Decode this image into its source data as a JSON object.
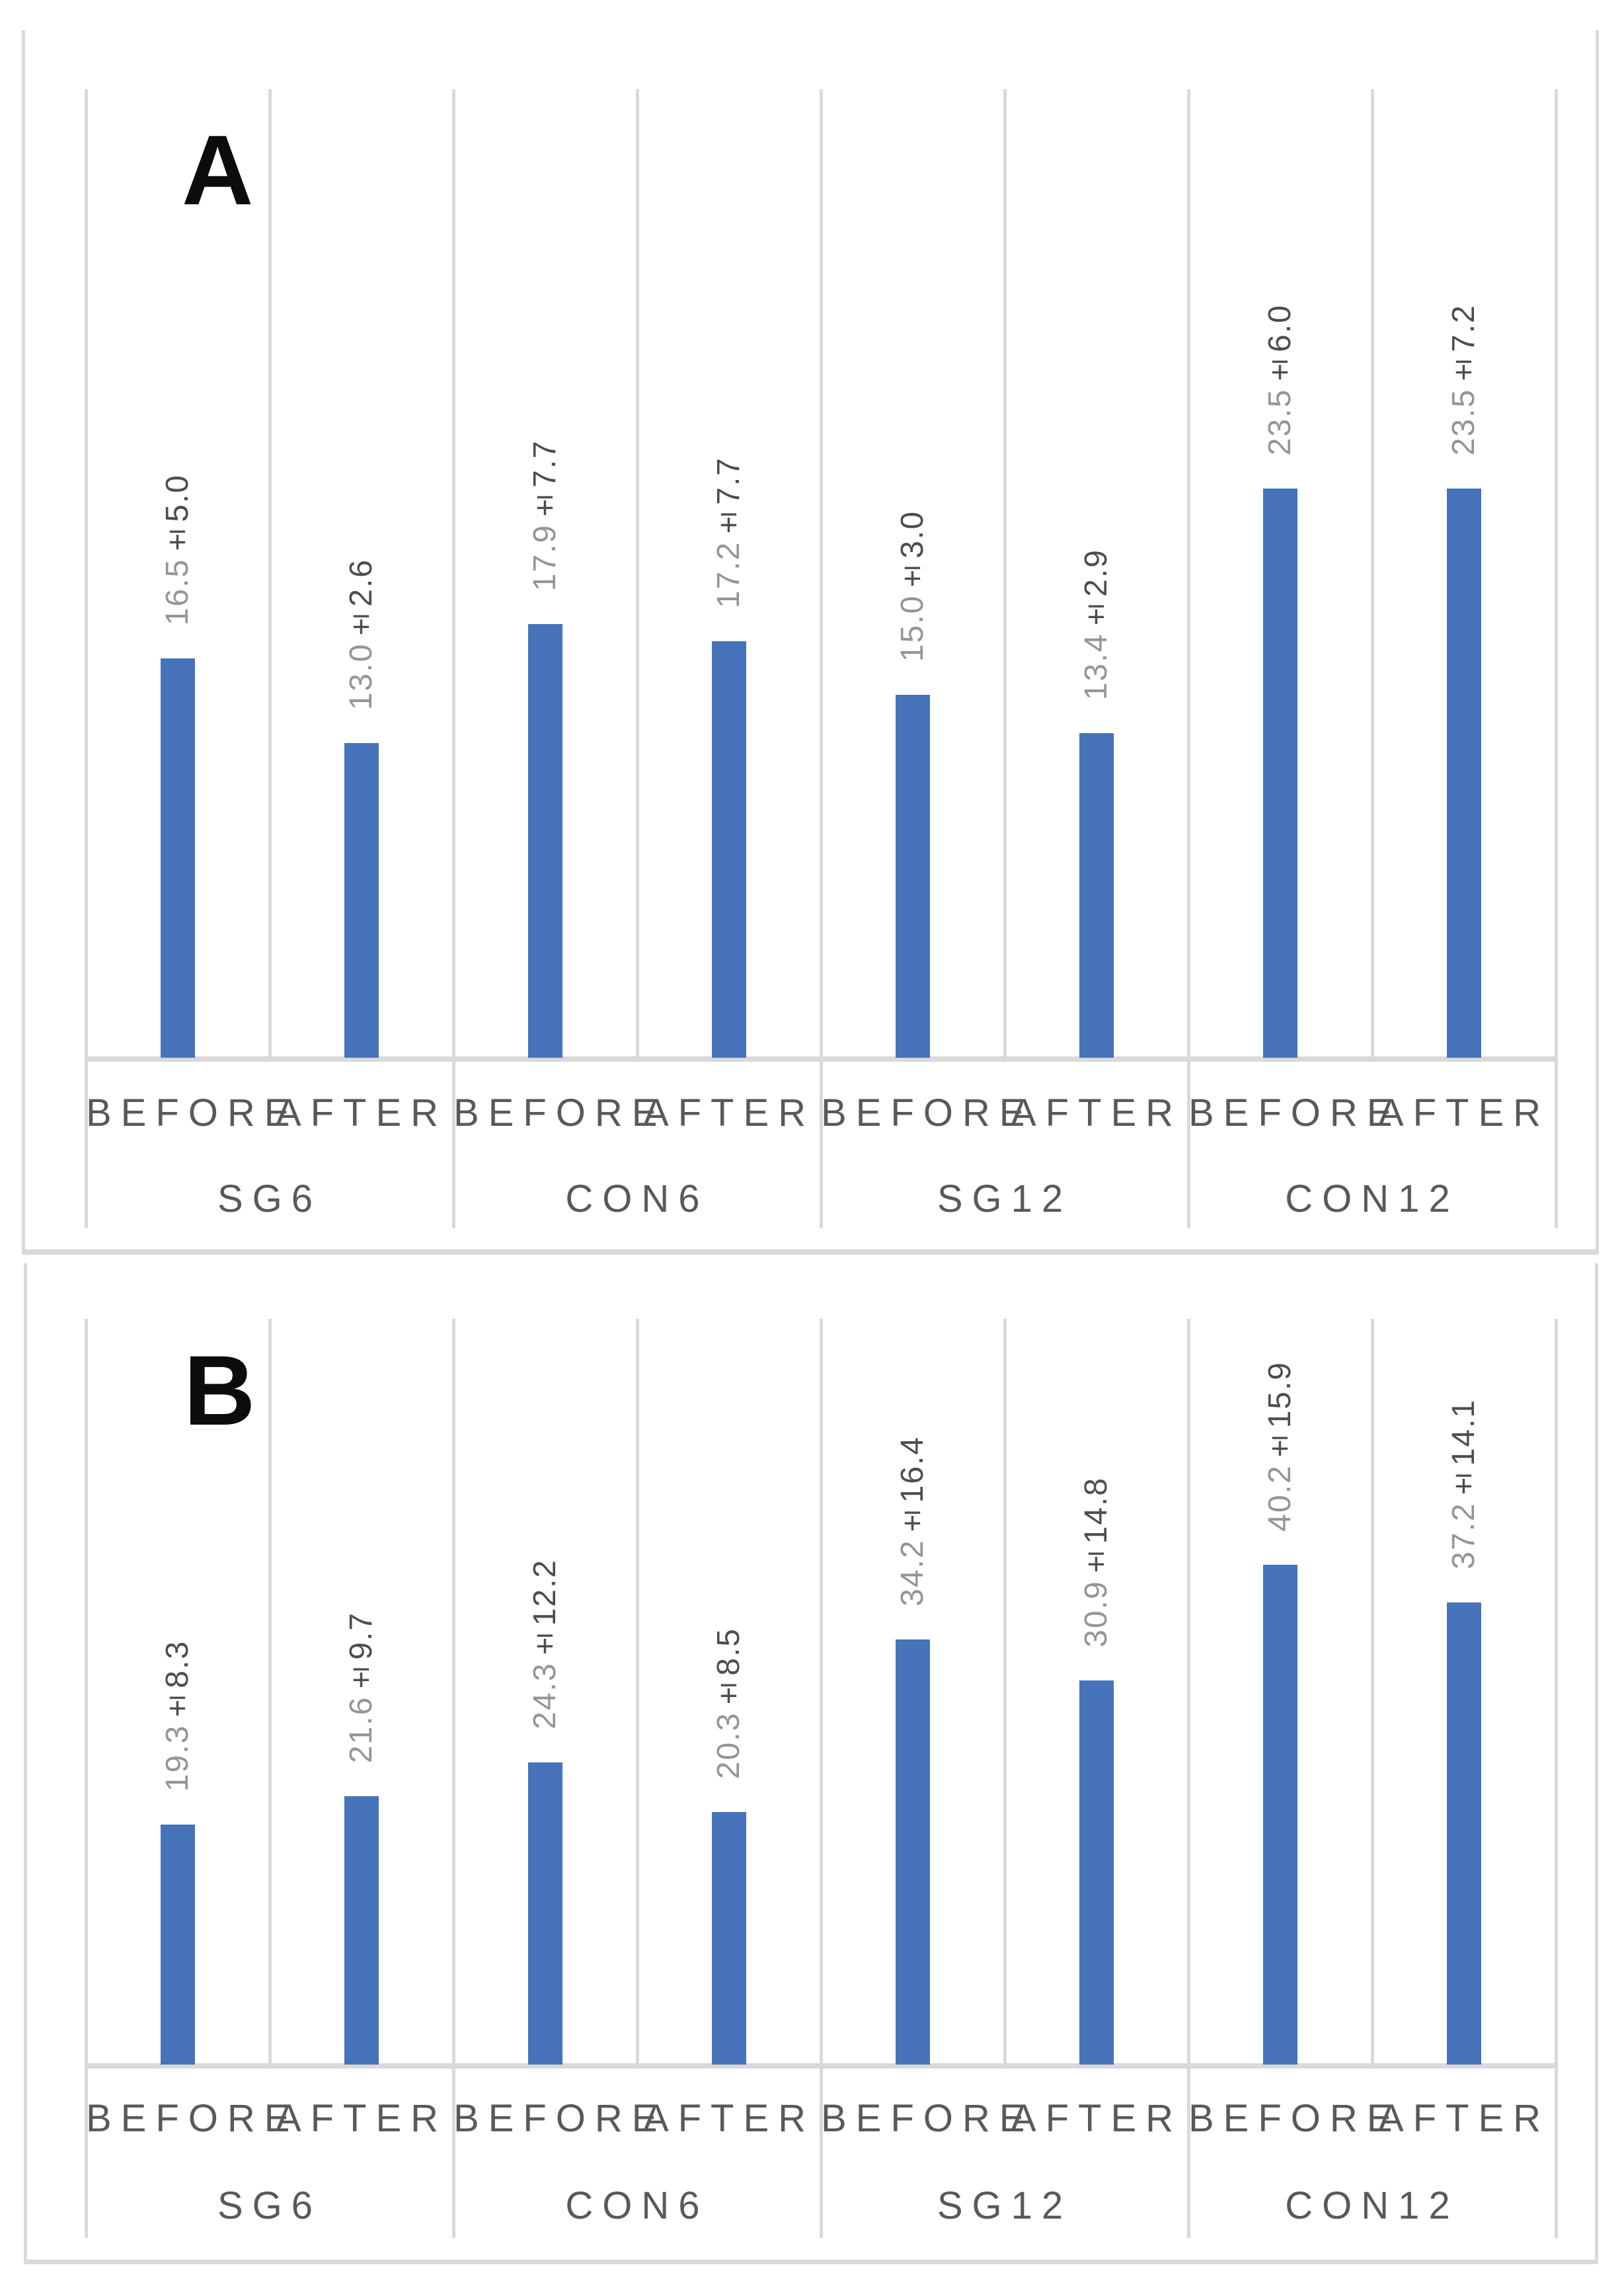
{
  "figure_type": "two-panel grouped bar chart",
  "colors": {
    "bar": "#4673ba",
    "gridline": "#d9d9d9",
    "axis_line": "#d9d9d9",
    "panel_border": "#d9d9d9",
    "axis_label_text": "#595959",
    "value_mean_text": "#959595",
    "value_sd_text": "#4d4d4d",
    "panel_letter_text": "#0c0c0c",
    "background": "#ffffff"
  },
  "chart_data": [
    {
      "type": "bar",
      "panel_label": "A",
      "title": "",
      "xlabel": "",
      "ylabel": "",
      "ylim": [
        0,
        40
      ],
      "grid": true,
      "legend_position": "none",
      "series_labels": [
        "BEFORE",
        "AFTER"
      ],
      "group_labels": [
        "SG6",
        "CON6",
        "SG12",
        "CON12"
      ],
      "groups": [
        {
          "label": "SG6",
          "bars": [
            {
              "series": "BEFORE",
              "mean": 16.5,
              "sd": 5.0,
              "label_mean": "16.5",
              "label_sd": "±5.0",
              "label": "16.5±5.0"
            },
            {
              "series": "AFTER",
              "mean": 13.0,
              "sd": 2.6,
              "label_mean": "13.0",
              "label_sd": "±2.6",
              "label": "13.0±2.6"
            }
          ]
        },
        {
          "label": "CON6",
          "bars": [
            {
              "series": "BEFORE",
              "mean": 17.9,
              "sd": 7.7,
              "label_mean": "17.9",
              "label_sd": "±7.7",
              "label": "17.9±7.7"
            },
            {
              "series": "AFTER",
              "mean": 17.2,
              "sd": 7.7,
              "label_mean": "17.2",
              "label_sd": "±7.7",
              "label": "17.2±7.7"
            }
          ]
        },
        {
          "label": "SG12",
          "bars": [
            {
              "series": "BEFORE",
              "mean": 15.0,
              "sd": 3.0,
              "label_mean": "15.0",
              "label_sd": "±3.0",
              "label": "15.0±3.0"
            },
            {
              "series": "AFTER",
              "mean": 13.4,
              "sd": 2.9,
              "label_mean": "13.4",
              "label_sd": "±2.9",
              "label": "13.4±2.9"
            }
          ]
        },
        {
          "label": "CON12",
          "bars": [
            {
              "series": "BEFORE",
              "mean": 23.5,
              "sd": 6.0,
              "label_mean": "23.5",
              "label_sd": "±6.0",
              "label": "23.5±6.0"
            },
            {
              "series": "AFTER",
              "mean": 23.5,
              "sd": 7.2,
              "label_mean": "23.5",
              "label_sd": "±7.2",
              "label": "23.5±7.2"
            }
          ]
        }
      ]
    },
    {
      "type": "bar",
      "panel_label": "B",
      "title": "",
      "xlabel": "",
      "ylabel": "",
      "ylim": [
        0,
        60
      ],
      "grid": true,
      "legend_position": "none",
      "series_labels": [
        "BEFORE",
        "AFTER"
      ],
      "group_labels": [
        "SG6",
        "CON6",
        "SG12",
        "CON12"
      ],
      "groups": [
        {
          "label": "SG6",
          "bars": [
            {
              "series": "BEFORE",
              "mean": 19.3,
              "sd": 8.3,
              "label_mean": "19.3",
              "label_sd": "±8.3",
              "label": "19.3±8.3"
            },
            {
              "series": "AFTER",
              "mean": 21.6,
              "sd": 9.7,
              "label_mean": "21.6",
              "label_sd": "±9.7",
              "label": "21.6±9.7"
            }
          ]
        },
        {
          "label": "CON6",
          "bars": [
            {
              "series": "BEFORE",
              "mean": 24.3,
              "sd": 12.2,
              "label_mean": "24.3",
              "label_sd": "±12.2",
              "label": "24.3±12.2"
            },
            {
              "series": "AFTER",
              "mean": 20.3,
              "sd": 8.5,
              "label_mean": "20.3",
              "label_sd": "±8.5",
              "label": "20.3±8.5"
            }
          ]
        },
        {
          "label": "SG12",
          "bars": [
            {
              "series": "BEFORE",
              "mean": 34.2,
              "sd": 16.4,
              "label_mean": "34.2",
              "label_sd": "±16.4",
              "label": "34.2±16.4"
            },
            {
              "series": "AFTER",
              "mean": 30.9,
              "sd": 14.8,
              "label_mean": "30.9",
              "label_sd": "±14.8",
              "label": "30.9±14.8"
            }
          ]
        },
        {
          "label": "CON12",
          "bars": [
            {
              "series": "BEFORE",
              "mean": 40.2,
              "sd": 15.9,
              "label_mean": "40.2",
              "label_sd": "±15.9",
              "label": "40.2±15.9"
            },
            {
              "series": "AFTER",
              "mean": 37.2,
              "sd": 14.1,
              "label_mean": "37.2",
              "label_sd": "±14.1",
              "label": "37.2±14.1"
            }
          ]
        }
      ]
    }
  ]
}
